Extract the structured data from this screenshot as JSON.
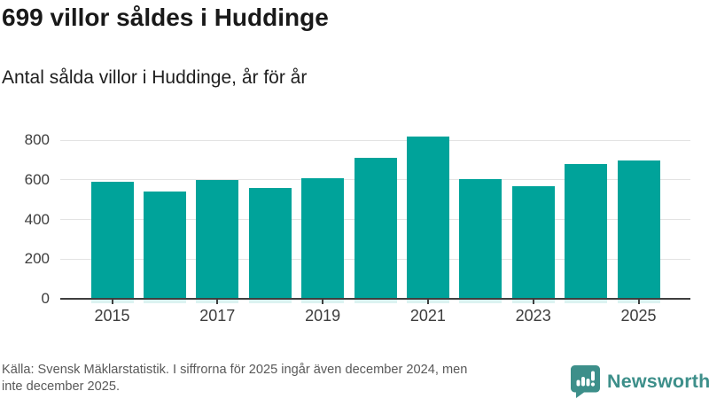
{
  "header": {
    "title": "699 villor såldes i Huddinge",
    "subtitle": "Antal sålda villor i Huddinge, år för år"
  },
  "chart_data": {
    "type": "bar",
    "title": "699 villor såldes i Huddinge",
    "subtitle": "Antal sålda villor i Huddinge, år för år",
    "categories": [
      "2015",
      "2016",
      "2017",
      "2018",
      "2019",
      "2020",
      "2021",
      "2022",
      "2023",
      "2024",
      "2025"
    ],
    "values": [
      588,
      542,
      601,
      560,
      606,
      710,
      816,
      604,
      568,
      678,
      699
    ],
    "xlabel": "",
    "ylabel": "",
    "ylim": [
      0,
      800
    ],
    "yticks": [
      0,
      200,
      400,
      600,
      800
    ],
    "x_tick_labels": [
      "2015",
      "2017",
      "2019",
      "2021",
      "2023",
      "2025"
    ],
    "legend": "none",
    "grid": "horizontal",
    "bar_color": "#00a39a"
  },
  "footer": {
    "source_line1": "Källa: Svensk Mäklarstatistik. I siffrorna för 2025 ingår även december 2024, men",
    "source_line2": "inte december 2025.",
    "logo_text": "Newsworthy"
  },
  "colors": {
    "bar": "#00a39a",
    "bar_under": "#dcf3f1",
    "grid": "#e3e3e3",
    "axis": "#3f3f3f",
    "logo": "#3d8f8a",
    "title_text": "#191919",
    "source_text": "#595959"
  }
}
